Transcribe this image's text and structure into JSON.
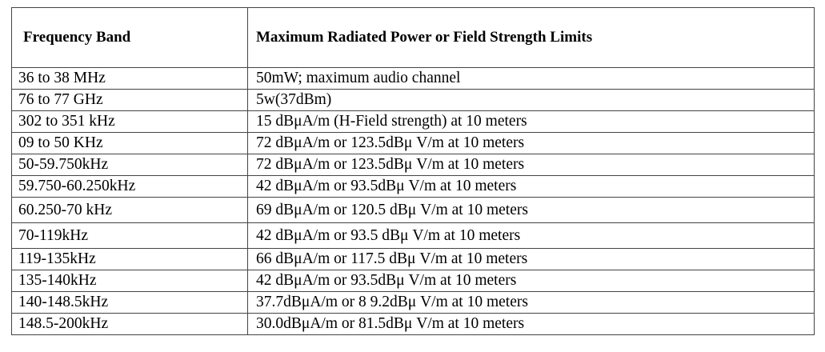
{
  "table": {
    "headers": [
      "Frequency Band",
      "Maximum Radiated Power or Field Strength Limits"
    ],
    "rows": [
      [
        "36 to 38 MHz",
        "50mW; maximum audio channel"
      ],
      [
        "76 to 77 GHz",
        "5w(37dBm)"
      ],
      [
        "302 to 351 kHz",
        "15 dBμA/m (H-Field strength) at 10 meters"
      ],
      [
        "09 to 50 KHz",
        "72 dBμA/m or 123.5dBμ V/m at 10 meters"
      ],
      [
        "50-59.750kHz",
        "72 dBμA/m or 123.5dBμ V/m at 10 meters"
      ],
      [
        "59.750-60.250kHz",
        "42 dBμA/m or 93.5dBμ V/m at 10 meters"
      ],
      [
        "60.250-70 kHz",
        "69 dBμA/m or 120.5 dBμ V/m at 10 meters"
      ],
      [
        "70-119kHz",
        "42 dBμA/m or 93.5 dBμ V/m at 10 meters"
      ],
      [
        "119-135kHz",
        "66 dBμA/m or 117.5 dBμ V/m at 10 meters"
      ],
      [
        "135-140kHz",
        "42 dBμA/m or 93.5dBμ V/m at 10 meters"
      ],
      [
        "140-148.5kHz",
        "37.7dBμA/m or 8 9.2dBμ V/m at 10 meters"
      ],
      [
        "148.5-200kHz",
        "30.0dBμA/m or 81.5dBμ V/m at 10 meters"
      ]
    ]
  }
}
